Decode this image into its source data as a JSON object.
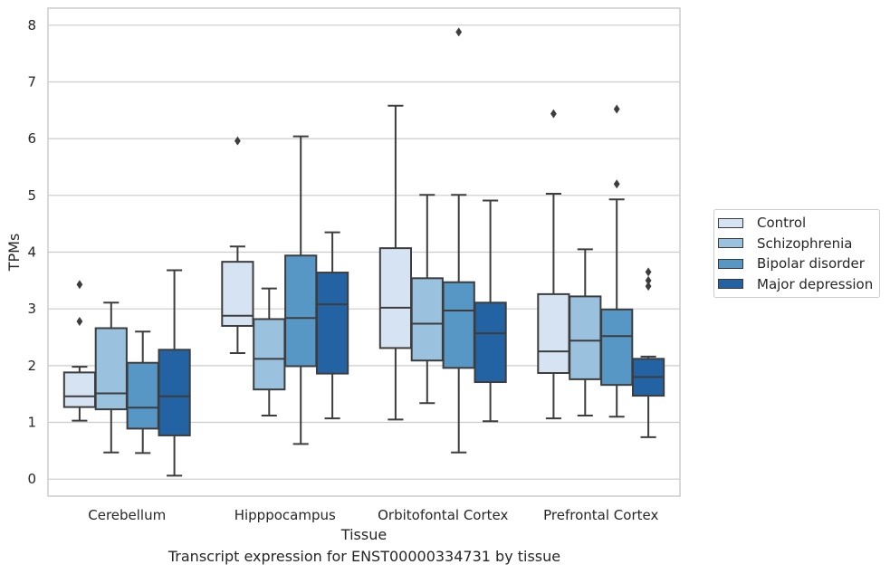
{
  "chart_data": {
    "type": "box",
    "title": "",
    "caption": "Transcript expression for ENST00000334731 by tissue",
    "xlabel": "Tissue",
    "ylabel": "TPMs",
    "ylim": [
      -0.3,
      8.3
    ],
    "yticks": [
      0,
      1,
      2,
      3,
      4,
      5,
      6,
      7,
      8
    ],
    "grid": "horizontal",
    "legend_position": "right",
    "categories": [
      "Cerebellum",
      "Hipppocampus",
      "Orbitofontal Cortex",
      "Prefrontal Cortex"
    ],
    "series": [
      {
        "name": "Control",
        "color": "#d5e3f2",
        "boxes": [
          {
            "whislo": 1.03,
            "q1": 1.27,
            "med": 1.46,
            "q3": 1.88,
            "whishi": 1.98,
            "fliers": [
              2.78,
              3.43
            ]
          },
          {
            "whislo": 2.22,
            "q1": 2.7,
            "med": 2.88,
            "q3": 3.83,
            "whishi": 4.1,
            "fliers": [
              5.96
            ]
          },
          {
            "whislo": 1.05,
            "q1": 2.31,
            "med": 3.02,
            "q3": 4.07,
            "whishi": 6.58,
            "fliers": []
          },
          {
            "whislo": 1.07,
            "q1": 1.87,
            "med": 2.25,
            "q3": 3.26,
            "whishi": 5.03,
            "fliers": [
              6.44
            ]
          }
        ]
      },
      {
        "name": "Schizophrenia",
        "color": "#9ac1de",
        "boxes": [
          {
            "whislo": 0.47,
            "q1": 1.23,
            "med": 1.51,
            "q3": 2.66,
            "whishi": 3.11,
            "fliers": []
          },
          {
            "whislo": 1.12,
            "q1": 1.58,
            "med": 2.12,
            "q3": 2.82,
            "whishi": 3.36,
            "fliers": []
          },
          {
            "whislo": 1.34,
            "q1": 2.09,
            "med": 2.74,
            "q3": 3.54,
            "whishi": 5.01,
            "fliers": []
          },
          {
            "whislo": 1.12,
            "q1": 1.76,
            "med": 2.44,
            "q3": 3.22,
            "whishi": 4.05,
            "fliers": []
          }
        ]
      },
      {
        "name": "Bipolar disorder",
        "color": "#5697c6",
        "boxes": [
          {
            "whislo": 0.46,
            "q1": 0.89,
            "med": 1.26,
            "q3": 2.05,
            "whishi": 2.6,
            "fliers": []
          },
          {
            "whislo": 0.62,
            "q1": 1.99,
            "med": 2.84,
            "q3": 3.94,
            "whishi": 6.04,
            "fliers": []
          },
          {
            "whislo": 0.47,
            "q1": 1.96,
            "med": 2.97,
            "q3": 3.47,
            "whishi": 5.01,
            "fliers": [
              7.88
            ]
          },
          {
            "whislo": 1.1,
            "q1": 1.66,
            "med": 2.52,
            "q3": 2.99,
            "whishi": 4.93,
            "fliers": [
              5.2,
              6.52
            ]
          }
        ]
      },
      {
        "name": "Major depression",
        "color": "#2363a3",
        "boxes": [
          {
            "whislo": 0.06,
            "q1": 0.77,
            "med": 1.46,
            "q3": 2.28,
            "whishi": 3.68,
            "fliers": []
          },
          {
            "whislo": 1.07,
            "q1": 1.86,
            "med": 3.08,
            "q3": 3.64,
            "whishi": 4.35,
            "fliers": []
          },
          {
            "whislo": 1.02,
            "q1": 1.71,
            "med": 2.57,
            "q3": 3.11,
            "whishi": 4.91,
            "fliers": []
          },
          {
            "whislo": 0.74,
            "q1": 1.47,
            "med": 1.8,
            "q3": 2.12,
            "whishi": 2.16,
            "fliers": [
              3.4,
              3.5,
              3.65
            ]
          }
        ]
      }
    ]
  }
}
